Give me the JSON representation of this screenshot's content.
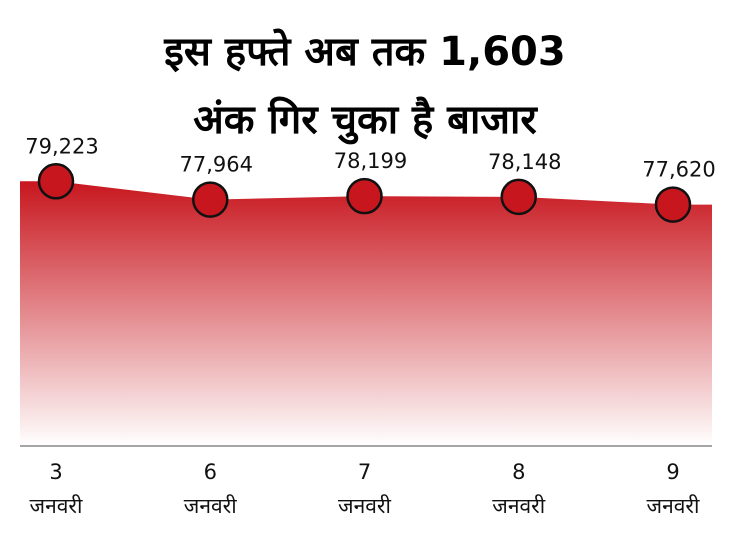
{
  "chart_data": {
    "type": "area",
    "title": "इस हफ्ते अब तक 1,603\nअंक गिर चुका है बाजार",
    "categories": [
      "3\nजनवरी",
      "6\nजनवरी",
      "7\nजनवरी",
      "8\nजनवरी",
      "9\nजनवरी"
    ],
    "values": [
      79223,
      77964,
      78199,
      78148,
      77620
    ],
    "value_labels": [
      "79,223",
      "77,964",
      "78,199",
      "78,148",
      "77,620"
    ],
    "color": "#c8161e",
    "ylim": [
      61000,
      80000
    ]
  }
}
